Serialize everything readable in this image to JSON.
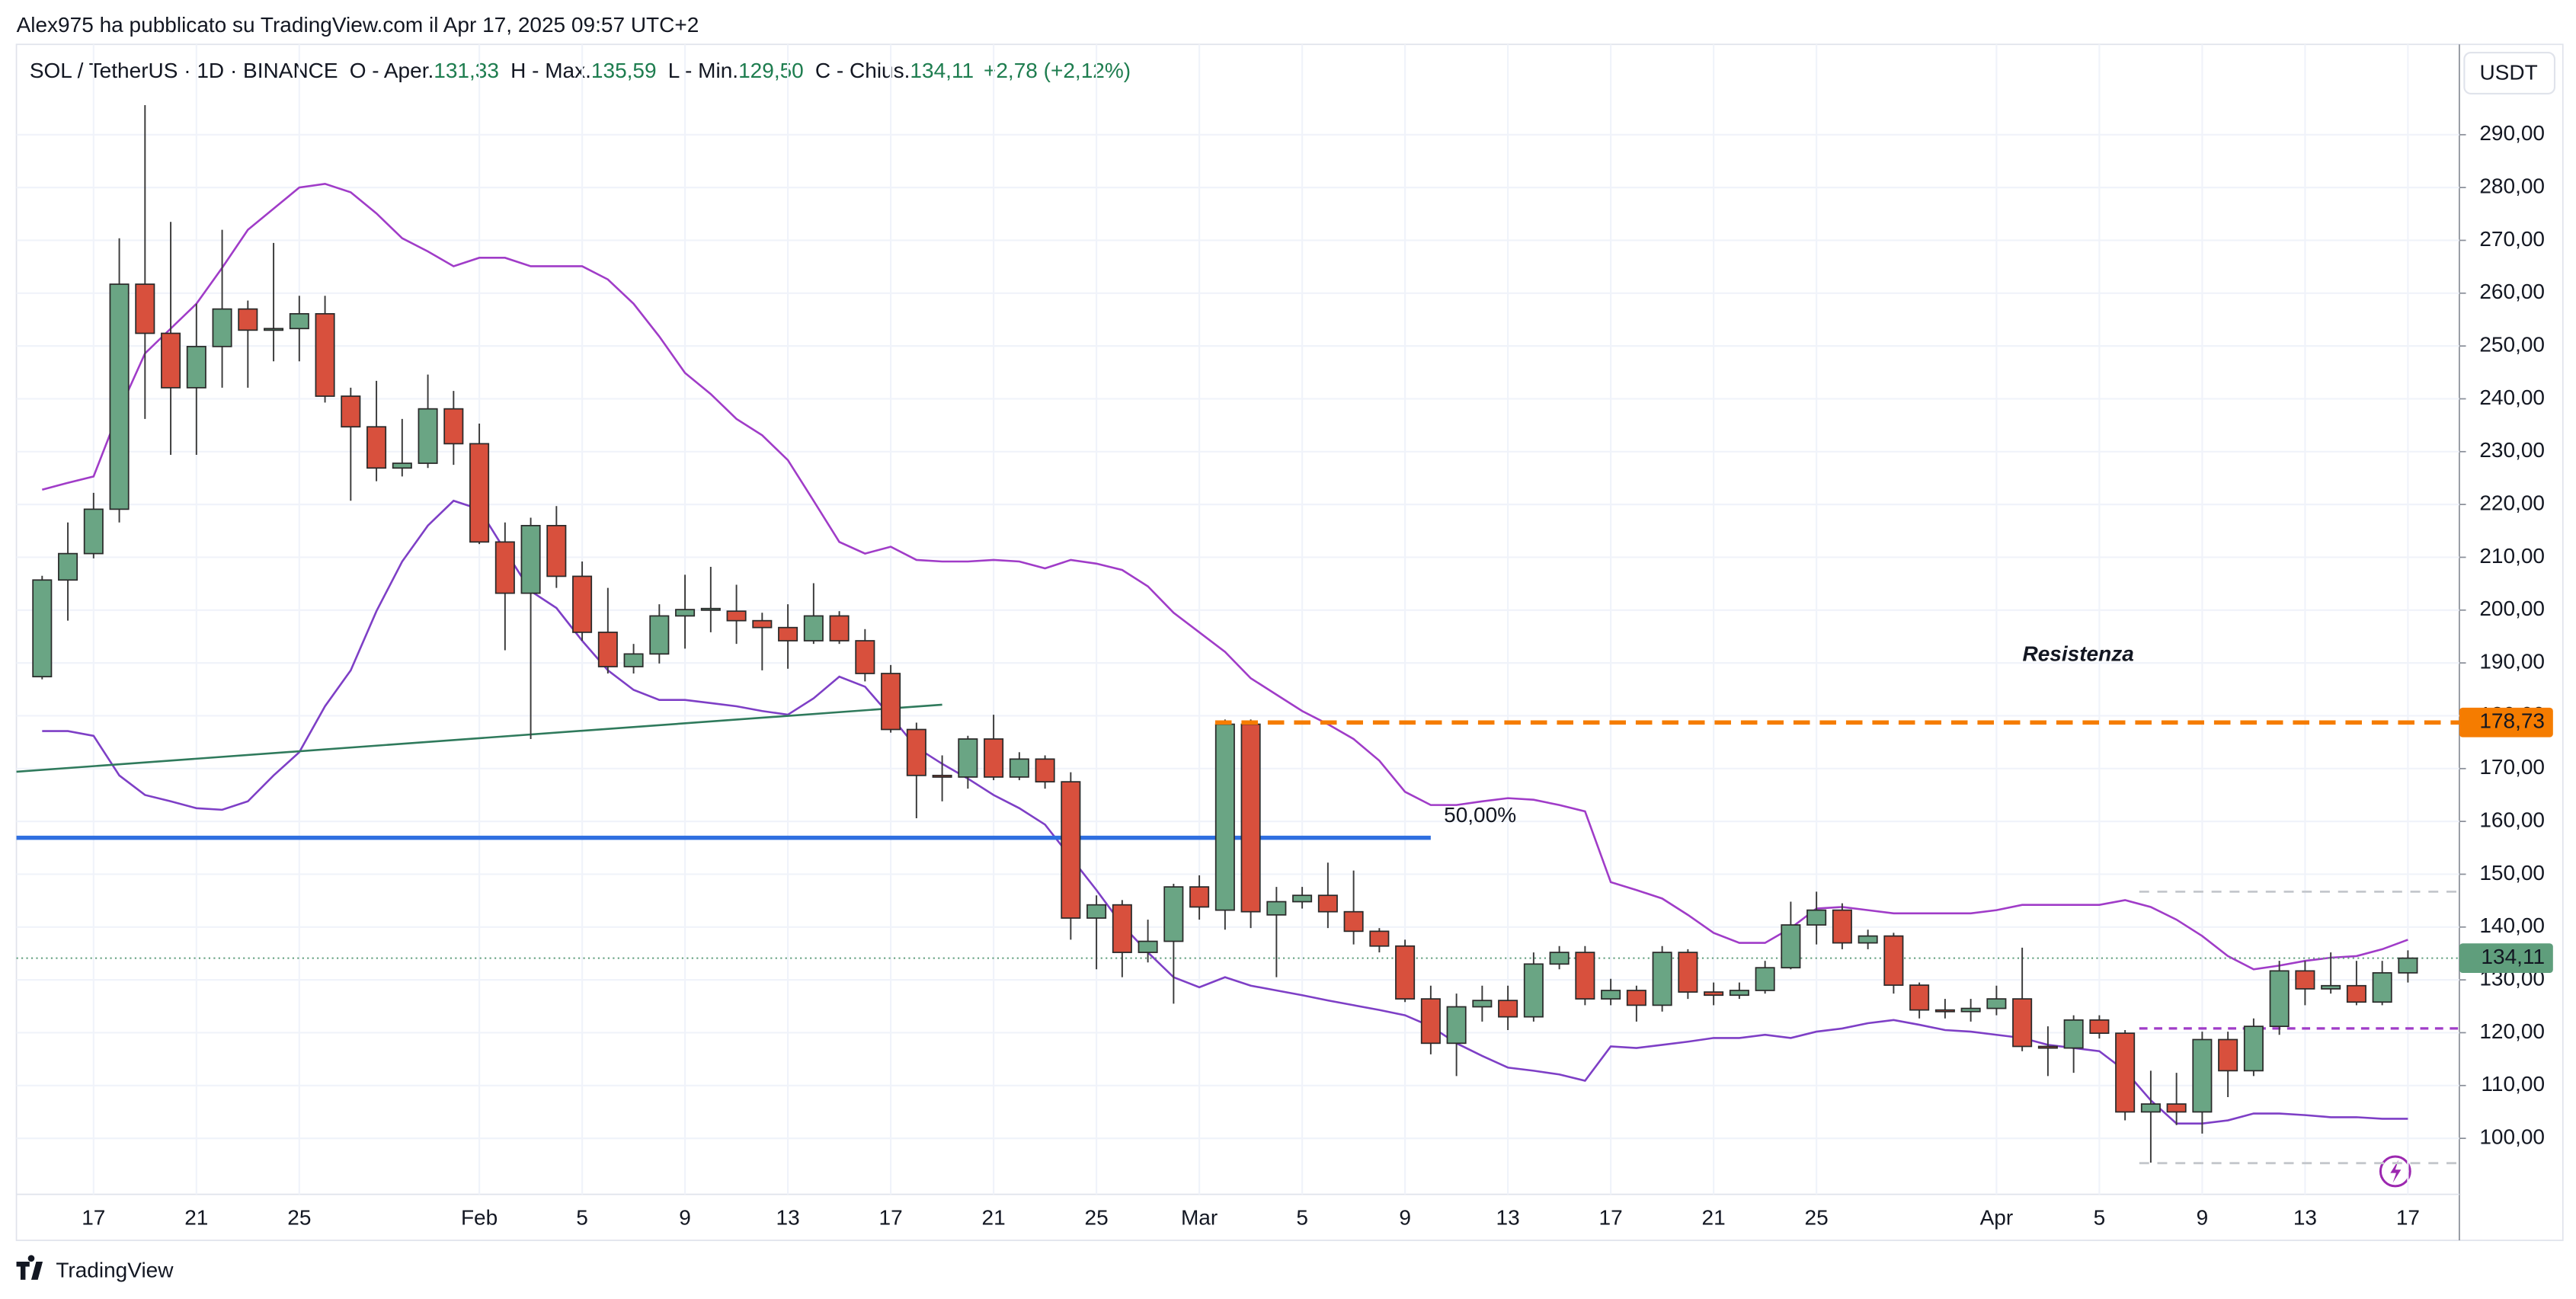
{
  "header": {
    "credit": "Alex975 ha pubblicato su TradingView.com il Apr 17, 2025 09:57 UTC+2",
    "brand": "TradingView"
  },
  "legend": {
    "symbol": "SOL / TetherUS · 1D · BINANCE",
    "open_label": "O - Aper.",
    "open": "131,33",
    "high_label": "H - Max.",
    "high": "135,59",
    "low_label": "L - Min.",
    "low": "129,50",
    "close_label": "C - Chius.",
    "close": "134,11",
    "change": "+2,78 (+2,12%)"
  },
  "chart_data": {
    "type": "candlestick",
    "currency": "USDT",
    "up_color": "#6aa584",
    "down_color": "#d8503d",
    "xlim": [
      "2025-01-14",
      "2025-04-19"
    ],
    "xticks": [
      {
        "value": "2025-01-17",
        "label": "17"
      },
      {
        "value": "2025-01-21",
        "label": "21"
      },
      {
        "value": "2025-01-25",
        "label": "25"
      },
      {
        "value": "2025-02-01",
        "label": "Feb"
      },
      {
        "value": "2025-02-05",
        "label": "5"
      },
      {
        "value": "2025-02-09",
        "label": "9"
      },
      {
        "value": "2025-02-13",
        "label": "13"
      },
      {
        "value": "2025-02-17",
        "label": "17"
      },
      {
        "value": "2025-02-21",
        "label": "21"
      },
      {
        "value": "2025-02-25",
        "label": "25"
      },
      {
        "value": "2025-03-01",
        "label": "Mar"
      },
      {
        "value": "2025-03-05",
        "label": "5"
      },
      {
        "value": "2025-03-09",
        "label": "9"
      },
      {
        "value": "2025-03-13",
        "label": "13"
      },
      {
        "value": "2025-03-17",
        "label": "17"
      },
      {
        "value": "2025-03-21",
        "label": "21"
      },
      {
        "value": "2025-03-25",
        "label": "25"
      },
      {
        "value": "2025-04-01",
        "label": "Apr"
      },
      {
        "value": "2025-04-05",
        "label": "5"
      },
      {
        "value": "2025-04-09",
        "label": "9"
      },
      {
        "value": "2025-04-13",
        "label": "13"
      },
      {
        "value": "2025-04-17",
        "label": "17"
      }
    ],
    "ylim": [
      89.4,
      307.1
    ],
    "yticks": [
      {
        "value": 100,
        "label": "100,00"
      },
      {
        "value": 110,
        "label": "110,00"
      },
      {
        "value": 120,
        "label": "120,00"
      },
      {
        "value": 130,
        "label": "130,00"
      },
      {
        "value": 140,
        "label": "140,00"
      },
      {
        "value": 150,
        "label": "150,00"
      },
      {
        "value": 160,
        "label": "160,00"
      },
      {
        "value": 170,
        "label": "170,00"
      },
      {
        "value": 180,
        "label": "180,00"
      },
      {
        "value": 190,
        "label": "190,00"
      },
      {
        "value": 200,
        "label": "200,00"
      },
      {
        "value": 210,
        "label": "210,00"
      },
      {
        "value": 220,
        "label": "220,00"
      },
      {
        "value": 230,
        "label": "230,00"
      },
      {
        "value": 240,
        "label": "240,00"
      },
      {
        "value": 250,
        "label": "250,00"
      },
      {
        "value": 260,
        "label": "260,00"
      },
      {
        "value": 270,
        "label": "270,00"
      },
      {
        "value": 280,
        "label": "280,00"
      },
      {
        "value": 290,
        "label": "290,00"
      }
    ],
    "grid": true,
    "dates": [
      "2025-01-15",
      "2025-01-16",
      "2025-01-17",
      "2025-01-18",
      "2025-01-19",
      "2025-01-20",
      "2025-01-21",
      "2025-01-22",
      "2025-01-23",
      "2025-01-24",
      "2025-01-25",
      "2025-01-26",
      "2025-01-27",
      "2025-01-28",
      "2025-01-29",
      "2025-01-30",
      "2025-01-31",
      "2025-02-01",
      "2025-02-02",
      "2025-02-03",
      "2025-02-04",
      "2025-02-05",
      "2025-02-06",
      "2025-02-07",
      "2025-02-08",
      "2025-02-09",
      "2025-02-10",
      "2025-02-11",
      "2025-02-12",
      "2025-02-13",
      "2025-02-14",
      "2025-02-15",
      "2025-02-16",
      "2025-02-17",
      "2025-02-18",
      "2025-02-19",
      "2025-02-20",
      "2025-02-21",
      "2025-02-22",
      "2025-02-23",
      "2025-02-24",
      "2025-02-25",
      "2025-02-26",
      "2025-02-27",
      "2025-02-28",
      "2025-03-01",
      "2025-03-02",
      "2025-03-03",
      "2025-03-04",
      "2025-03-05",
      "2025-03-06",
      "2025-03-07",
      "2025-03-08",
      "2025-03-09",
      "2025-03-10",
      "2025-03-11",
      "2025-03-12",
      "2025-03-13",
      "2025-03-14",
      "2025-03-15",
      "2025-03-16",
      "2025-03-17",
      "2025-03-18",
      "2025-03-19",
      "2025-03-20",
      "2025-03-21",
      "2025-03-22",
      "2025-03-23",
      "2025-03-24",
      "2025-03-25",
      "2025-03-26",
      "2025-03-27",
      "2025-03-28",
      "2025-03-29",
      "2025-03-30",
      "2025-03-31",
      "2025-04-01",
      "2025-04-02",
      "2025-04-03",
      "2025-04-04",
      "2025-04-05",
      "2025-04-06",
      "2025-04-07",
      "2025-04-08",
      "2025-04-09",
      "2025-04-10",
      "2025-04-11",
      "2025-04-12",
      "2025-04-13",
      "2025-04-14",
      "2025-04-15",
      "2025-04-16",
      "2025-04-17"
    ],
    "open": [
      187.4,
      205.7,
      210.7,
      219.1,
      261.7,
      252.4,
      242.1,
      249.9,
      257.0,
      253.0,
      253.3,
      256.1,
      240.5,
      234.7,
      226.9,
      227.8,
      238.1,
      231.5,
      212.9,
      203.2,
      216.0,
      206.4,
      195.8,
      189.3,
      191.7,
      198.9,
      200.1,
      199.8,
      198.0,
      196.7,
      194.2,
      198.9,
      194.2,
      188.0,
      177.4,
      168.7,
      168.4,
      175.6,
      168.4,
      171.8,
      167.5,
      141.7,
      144.2,
      135.2,
      137.3,
      147.6,
      143.2,
      178.4,
      142.3,
      144.8,
      146.0,
      142.9,
      139.2,
      136.4,
      126.4,
      118.0,
      124.9,
      126.1,
      123.0,
      133.0,
      135.2,
      126.4,
      128.0,
      125.2,
      135.2,
      127.7,
      127.1,
      128.0,
      132.3,
      140.4,
      143.2,
      137.0,
      138.3,
      129.0,
      124.3,
      124.0,
      124.6,
      126.4,
      117.4,
      117.1,
      122.4,
      119.9,
      105.0,
      106.5,
      105.0,
      118.7,
      112.8,
      121.2,
      131.7,
      128.3,
      128.9,
      125.8,
      131.33
    ],
    "high": [
      206.5,
      216.6,
      222.2,
      270.4,
      295.6,
      273.5,
      258.0,
      272.0,
      258.6,
      269.5,
      259.5,
      259.5,
      242.1,
      243.4,
      236.2,
      244.6,
      241.5,
      235.3,
      216.6,
      217.5,
      219.7,
      209.2,
      204.2,
      193.6,
      201.1,
      206.7,
      208.2,
      204.8,
      199.5,
      201.1,
      205.1,
      199.8,
      196.4,
      189.6,
      178.7,
      172.5,
      176.2,
      180.2,
      173.1,
      172.5,
      169.3,
      146.0,
      145.1,
      141.4,
      148.2,
      149.8,
      179.3,
      179.3,
      147.6,
      147.6,
      152.2,
      150.7,
      139.8,
      137.6,
      128.9,
      127.4,
      128.9,
      128.9,
      135.2,
      136.4,
      136.4,
      130.2,
      128.9,
      136.4,
      135.8,
      129.5,
      129.5,
      133.6,
      144.8,
      146.7,
      144.5,
      139.5,
      138.9,
      129.5,
      126.4,
      126.4,
      128.9,
      136.1,
      121.2,
      123.3,
      123.3,
      120.5,
      112.8,
      112.4,
      120.2,
      120.2,
      122.7,
      133.6,
      133.6,
      135.2,
      133.6,
      133.6,
      135.59
    ],
    "low": [
      186.9,
      198.0,
      209.8,
      216.6,
      236.2,
      229.4,
      229.4,
      242.1,
      242.1,
      247.1,
      247.1,
      239.3,
      220.7,
      224.4,
      225.3,
      226.9,
      227.5,
      212.5,
      192.4,
      175.6,
      204.2,
      194.2,
      188.0,
      188.0,
      189.9,
      192.7,
      195.8,
      193.6,
      188.6,
      188.9,
      193.6,
      193.6,
      186.5,
      176.8,
      160.6,
      163.8,
      166.2,
      167.8,
      167.8,
      166.2,
      137.6,
      132.0,
      130.5,
      133.3,
      125.5,
      141.4,
      139.5,
      139.8,
      130.5,
      143.5,
      139.8,
      136.7,
      135.2,
      125.8,
      115.9,
      111.8,
      122.1,
      120.5,
      122.1,
      132.0,
      125.2,
      125.2,
      122.1,
      124.0,
      126.4,
      125.2,
      126.4,
      127.4,
      132.0,
      136.7,
      135.8,
      135.8,
      127.4,
      122.7,
      122.7,
      122.1,
      123.3,
      116.5,
      111.8,
      112.4,
      118.9,
      103.4,
      95.4,
      102.5,
      100.9,
      107.8,
      111.8,
      119.6,
      125.2,
      127.4,
      125.2,
      125.2,
      129.5
    ],
    "close": [
      205.7,
      210.7,
      219.1,
      261.7,
      252.4,
      242.1,
      249.9,
      257.0,
      253.0,
      253.3,
      256.1,
      240.5,
      234.7,
      226.9,
      227.8,
      238.1,
      231.5,
      212.9,
      203.2,
      216.0,
      206.4,
      195.8,
      189.3,
      191.7,
      198.9,
      200.1,
      200.3,
      198.0,
      196.7,
      194.2,
      198.9,
      194.2,
      188.0,
      177.4,
      168.7,
      168.4,
      175.6,
      168.4,
      171.8,
      167.5,
      141.7,
      144.2,
      135.2,
      137.3,
      147.6,
      143.8,
      178.4,
      142.9,
      144.8,
      146.0,
      142.9,
      139.2,
      136.4,
      126.4,
      118.0,
      124.9,
      126.1,
      123.0,
      133.0,
      135.2,
      126.4,
      128.0,
      125.2,
      135.2,
      127.7,
      127.1,
      128.0,
      132.3,
      140.4,
      143.2,
      137.0,
      138.3,
      129.0,
      124.3,
      124.0,
      124.6,
      126.4,
      117.4,
      117.1,
      122.4,
      119.9,
      105.0,
      106.5,
      105.0,
      118.7,
      112.8,
      121.2,
      131.7,
      128.3,
      128.9,
      125.8,
      131.33,
      134.11
    ],
    "bands": [
      {
        "color": "#a03cc8",
        "values": [
          222.8,
          224.1,
          225.3,
          237.8,
          248.6,
          253.3,
          258.0,
          264.8,
          272.0,
          276.0,
          280.0,
          280.7,
          279.1,
          275.1,
          270.4,
          267.9,
          265.1,
          266.7,
          266.7,
          265.1,
          265.1,
          265.1,
          262.6,
          258.0,
          251.8,
          244.9,
          240.9,
          236.2,
          233.1,
          228.4,
          220.7,
          212.9,
          210.7,
          212.0,
          209.5,
          209.2,
          209.2,
          209.5,
          209.2,
          207.9,
          209.5,
          208.8,
          207.6,
          204.5,
          199.5,
          195.8,
          192.1,
          187.1,
          184.0,
          180.9,
          178.4,
          175.6,
          171.5,
          165.6,
          163.1,
          163.1,
          163.8,
          164.4,
          164.1,
          163.1,
          161.9,
          148.5,
          147.0,
          145.4,
          142.3,
          138.9,
          137.0,
          137.0,
          139.8,
          143.5,
          143.8,
          143.2,
          142.6,
          142.6,
          142.6,
          142.6,
          143.2,
          144.2,
          144.2,
          144.2,
          144.2,
          145.1,
          143.8,
          141.4,
          138.3,
          134.5,
          132.0,
          132.7,
          133.6,
          134.2,
          134.5,
          135.8,
          137.6
        ]
      },
      {
        "color": "#7e3fc6",
        "values": [
          177.1,
          177.1,
          176.2,
          168.7,
          165.0,
          163.8,
          162.5,
          162.2,
          163.8,
          168.7,
          173.1,
          181.8,
          188.6,
          199.8,
          209.2,
          216.0,
          220.7,
          219.1,
          211.3,
          203.6,
          200.4,
          194.2,
          188.6,
          184.9,
          183.0,
          183.0,
          182.4,
          181.8,
          180.9,
          180.2,
          183.3,
          187.4,
          185.5,
          179.9,
          174.0,
          170.9,
          168.1,
          165.0,
          162.5,
          159.4,
          153.2,
          147.0,
          140.4,
          135.2,
          130.5,
          128.6,
          130.5,
          128.9,
          128.0,
          127.1,
          126.1,
          125.2,
          124.3,
          123.3,
          121.2,
          118.0,
          115.6,
          113.4,
          112.8,
          112.1,
          110.9,
          117.4,
          117.1,
          117.7,
          118.3,
          119.0,
          119.0,
          119.6,
          119.0,
          120.2,
          120.8,
          121.8,
          122.4,
          121.5,
          120.5,
          120.2,
          119.6,
          119.0,
          117.7,
          117.1,
          116.5,
          112.8,
          107.2,
          102.8,
          102.8,
          103.4,
          104.7,
          104.7,
          104.4,
          104.0,
          104.0,
          103.7,
          103.7
        ]
      }
    ],
    "trendline": {
      "x": [
        "2025-01-14",
        "2025-02-19"
      ],
      "values": [
        169.4,
        182.1
      ],
      "color": "#2f7a5c"
    },
    "fib_level": {
      "label": "50,00%",
      "value": 156.9,
      "x": [
        "2025-01-14",
        "2025-03-10"
      ],
      "color": "#2f6fe0"
    },
    "resistance": {
      "label": "Resistenza",
      "value": 178.73,
      "value_label": "178,73",
      "x_start": "2025-03-02",
      "color": "#f57c00",
      "label_color": "#e8434e"
    },
    "support": {
      "value": 120.8,
      "x_start": "2025-04-07",
      "color": "#a03cc8"
    },
    "range": {
      "values": [
        146.7,
        95.3
      ],
      "x_start": "2025-04-07",
      "color": "#c4c7cc"
    },
    "last_price": {
      "value": 134.11,
      "label": "134,11",
      "color": "#5f9e7c"
    }
  }
}
